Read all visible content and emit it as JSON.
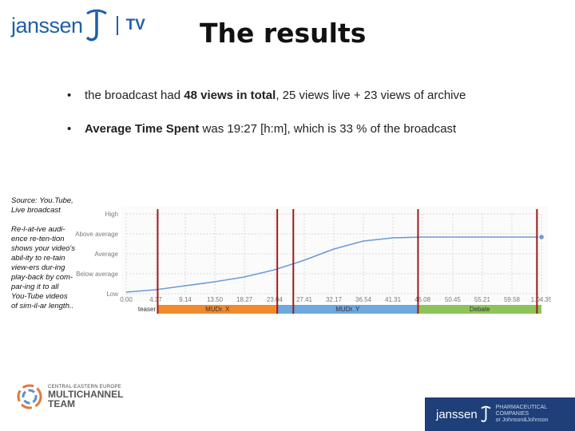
{
  "header": {
    "logo_text": "janssen",
    "logo_tv": "TV",
    "title": "The results"
  },
  "bullets": [
    {
      "marker": "•",
      "pre": "the broadcast had ",
      "bold": "48 views in total",
      "post": ", 25 views live + 23 views of archive"
    },
    {
      "marker": "•",
      "pre": "",
      "bold": "Average Time Spent",
      "post": "  was 19:27 [h:m], which is 33 % of the broadcast"
    }
  ],
  "sidebar": {
    "source": "Source: You.Tube, Live broadcast",
    "note": "Re-l-at-ive audi-ence re-ten-tion shows your video's abil-ity to re-tain view-ers dur-ing play-back by com-par-ing it to all You-Tube videos of sim-il-ar length.."
  },
  "chart_data": {
    "type": "line",
    "y_levels": [
      "High",
      "Above average",
      "Average",
      "Below average",
      "Low"
    ],
    "x_ticks": [
      "0.00",
      "4.37",
      "9.14",
      "13.50",
      "18.27",
      "23.04",
      "27.41",
      "32.17",
      "36.54",
      "41.31",
      "46.08",
      "50.45",
      "55.21",
      "59.58",
      "1.04.35"
    ],
    "x": [
      0,
      4.6,
      9.2,
      13.8,
      18.4,
      23.1,
      27.7,
      32.3,
      36.9,
      41.5,
      46.1,
      50.8,
      55.4,
      60.0,
      64.6
    ],
    "y": [
      0.02,
      0.05,
      0.1,
      0.15,
      0.21,
      0.3,
      0.42,
      0.56,
      0.66,
      0.7,
      0.71,
      0.71,
      0.71,
      0.71,
      0.71
    ],
    "xlim": [
      0,
      64.6
    ],
    "ylim": [
      0,
      1
    ],
    "segments": [
      {
        "label": "teaser",
        "start": 0,
        "end": 4.9,
        "color": "#ffffff"
      },
      {
        "label": "MUDr. X",
        "start": 4.9,
        "end": 23.5,
        "color": "#f08a2c"
      },
      {
        "label": "MUDr. Y",
        "start": 23.5,
        "end": 45.4,
        "color": "#6fa8dc"
      },
      {
        "label": "Debate",
        "start": 45.4,
        "end": 64.6,
        "color": "#8dc45a"
      }
    ],
    "markers": [
      4.9,
      23.5,
      26.0,
      45.4,
      63.9
    ],
    "colors": {
      "line": "#6a9bd4",
      "marker": "#a01818",
      "grid": "#d9d9d9",
      "axis_text": "#7a7a7a"
    }
  },
  "brand": {
    "team_line1": "CENTRAL-EASTERN EUROPE",
    "team_line2": "MULTICHANNEL",
    "team_line3": "TEAM",
    "footer_word": "janssen",
    "footer_tag1": "PHARMACEUTICAL COMPANIES",
    "footer_tag2": "or Johnson&Johnson"
  }
}
